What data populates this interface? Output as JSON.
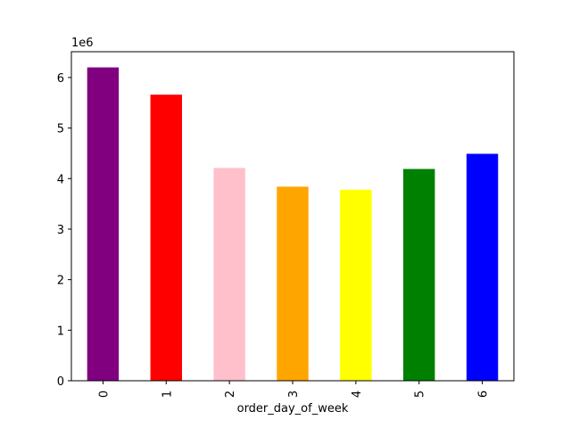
{
  "chart_data": {
    "type": "bar",
    "xlabel": "order_day_of_week",
    "ylabel": "",
    "y_multiplier_label": "1e6",
    "categories": [
      "0",
      "1",
      "2",
      "3",
      "4",
      "5",
      "6"
    ],
    "values": [
      6200000,
      5660000,
      4210000,
      3840000,
      3780000,
      4190000,
      4490000
    ],
    "colors": [
      "#800080",
      "#ff0000",
      "#ffc0cb",
      "#ffa500",
      "#ffff00",
      "#008000",
      "#0000ff"
    ],
    "ylim": [
      0,
      6510000
    ],
    "yticks": [
      0,
      1,
      2,
      3,
      4,
      5,
      6
    ],
    "grid": false,
    "x_tick_rotation": "vertical"
  }
}
